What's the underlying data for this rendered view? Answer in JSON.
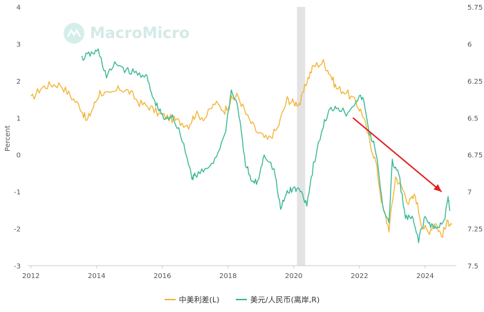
{
  "watermark": {
    "text": "MacroMicro"
  },
  "chart_data": {
    "type": "line",
    "title": "",
    "xlabel": "",
    "ylabel": "Percent",
    "y2label": "",
    "grid": false,
    "legend_position": "bottom",
    "xlim": [
      2011.9,
      2024.95
    ],
    "ylim": [
      -3,
      4
    ],
    "y2lim": [
      5.75,
      7.5
    ],
    "y2_inverted": true,
    "x_ticks": [
      "2012",
      "2014",
      "2016",
      "2018",
      "2020",
      "2022",
      "2024"
    ],
    "y_ticks": [
      "4",
      "3",
      "2",
      "1",
      "0",
      "-1",
      "-2",
      "-3"
    ],
    "y2_ticks": [
      "5.75",
      "6",
      "6.25",
      "6.5",
      "6.75",
      "7",
      "7.25",
      "7.5"
    ],
    "recession_band": [
      2020.1,
      2020.35
    ],
    "series": [
      {
        "name": "中美利差(L)",
        "axis": "left",
        "color": "#f2b53a",
        "x": [
          2012.0,
          2012.3,
          2012.6,
          2012.9,
          2013.2,
          2013.5,
          2013.7,
          2013.9,
          2014.1,
          2014.4,
          2014.7,
          2015.0,
          2015.3,
          2015.6,
          2015.9,
          2016.2,
          2016.5,
          2016.8,
          2017.0,
          2017.3,
          2017.6,
          2017.9,
          2018.1,
          2018.3,
          2018.6,
          2018.9,
          2019.2,
          2019.5,
          2019.8,
          2020.0,
          2020.2,
          2020.4,
          2020.6,
          2020.9,
          2021.1,
          2021.3,
          2021.6,
          2021.9,
          2022.1,
          2022.3,
          2022.5,
          2022.7,
          2022.9,
          2023.1,
          2023.3,
          2023.5,
          2023.7,
          2023.9,
          2024.1,
          2024.3,
          2024.5,
          2024.7,
          2024.8
        ],
        "y": [
          1.5,
          1.8,
          1.9,
          1.9,
          1.6,
          1.3,
          0.9,
          1.3,
          1.7,
          1.6,
          1.8,
          1.7,
          1.4,
          1.3,
          1.1,
          1.0,
          0.9,
          0.8,
          1.1,
          1.0,
          1.4,
          1.2,
          1.5,
          1.6,
          1.0,
          0.6,
          0.4,
          0.7,
          1.5,
          1.4,
          1.4,
          2.0,
          2.4,
          2.5,
          2.2,
          1.8,
          1.7,
          1.4,
          1.1,
          0.4,
          -0.2,
          -1.4,
          -2.0,
          -0.6,
          -0.9,
          -1.3,
          -1.1,
          -1.9,
          -2.1,
          -1.8,
          -2.2,
          -1.8,
          -1.9
        ]
      },
      {
        "name": "美元/人民币(离岸,R)",
        "axis": "right",
        "color": "#3ab795",
        "x": [
          2013.55,
          2013.8,
          2014.05,
          2014.3,
          2014.6,
          2014.9,
          2015.2,
          2015.5,
          2015.7,
          2015.9,
          2016.1,
          2016.3,
          2016.6,
          2016.9,
          2017.0,
          2017.3,
          2017.6,
          2017.9,
          2018.1,
          2018.3,
          2018.5,
          2018.7,
          2018.9,
          2019.1,
          2019.4,
          2019.6,
          2019.8,
          2020.0,
          2020.2,
          2020.4,
          2020.6,
          2020.9,
          2021.1,
          2021.3,
          2021.6,
          2021.9,
          2022.1,
          2022.3,
          2022.5,
          2022.7,
          2022.9,
          2023.0,
          2023.2,
          2023.4,
          2023.6,
          2023.8,
          2024.0,
          2024.2,
          2024.4,
          2024.6,
          2024.7,
          2024.75
        ],
        "y": [
          6.1,
          6.07,
          6.05,
          6.22,
          6.13,
          6.18,
          6.2,
          6.21,
          6.36,
          6.45,
          6.52,
          6.48,
          6.64,
          6.9,
          6.89,
          6.86,
          6.78,
          6.62,
          6.32,
          6.42,
          6.78,
          6.93,
          6.94,
          6.74,
          6.85,
          7.12,
          7.0,
          6.98,
          6.99,
          7.08,
          6.82,
          6.55,
          6.45,
          6.42,
          6.47,
          6.38,
          6.36,
          6.6,
          6.72,
          7.1,
          7.2,
          6.8,
          6.88,
          7.18,
          7.18,
          7.32,
          7.18,
          7.23,
          7.25,
          7.17,
          7.05,
          7.13
        ]
      }
    ],
    "annotation": {
      "type": "arrow",
      "color": "#e02020",
      "from": [
        2021.8,
        6.5
      ],
      "to": [
        2024.5,
        7.0
      ]
    }
  }
}
